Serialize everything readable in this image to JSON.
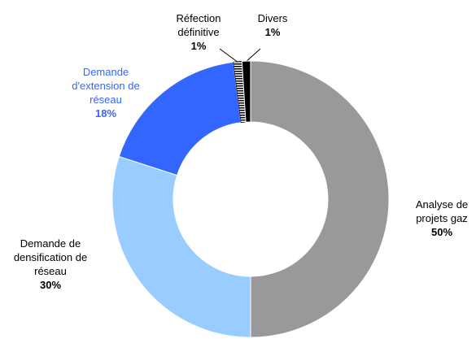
{
  "chart_data": {
    "type": "donut",
    "categories": [
      "Analyse de projets gaz",
      "Demande de densification de réseau",
      "Demande d'extension de réseau",
      "Réfection définitive",
      "Divers"
    ],
    "values": [
      50,
      30,
      18,
      1,
      1
    ],
    "value_labels": [
      "50%",
      "30%",
      "18%",
      "1%",
      "1%"
    ],
    "colors": [
      "#999999",
      "#99ccff",
      "#3366ff",
      "striped",
      "#000000"
    ],
    "label_colors": [
      "#000000",
      "#000000",
      "#3366ff",
      "#000000",
      "#000000"
    ]
  }
}
